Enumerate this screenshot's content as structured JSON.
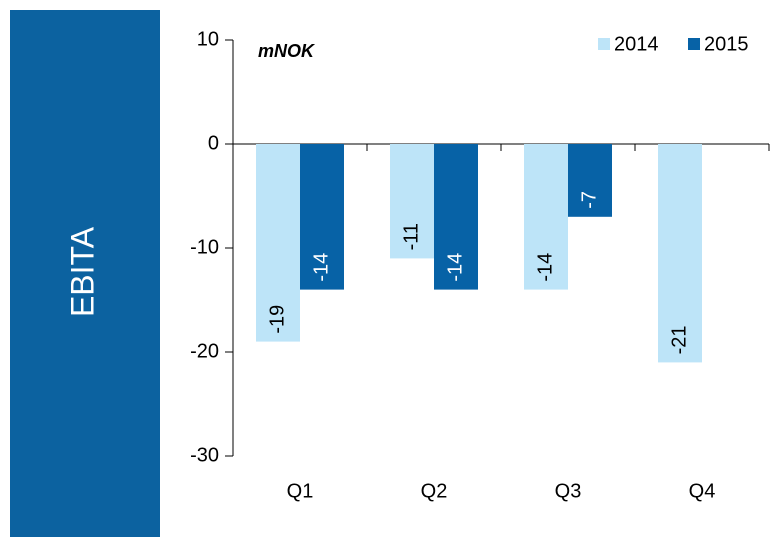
{
  "chart_data": {
    "type": "bar",
    "title": "EBITA",
    "subtitle": "mNOK",
    "categories": [
      "Q1",
      "Q2",
      "Q3",
      "Q4"
    ],
    "series": [
      {
        "name": "2014",
        "color": "#bde4f8",
        "values": [
          -19,
          -11,
          -14,
          -21
        ]
      },
      {
        "name": "2015",
        "color": "#0762a6",
        "values": [
          -14,
          -14,
          -7,
          null
        ]
      }
    ],
    "ylim": [
      -30,
      10
    ],
    "yticks": [
      -30,
      -20,
      -10,
      0,
      10
    ],
    "legend": "top-right"
  }
}
